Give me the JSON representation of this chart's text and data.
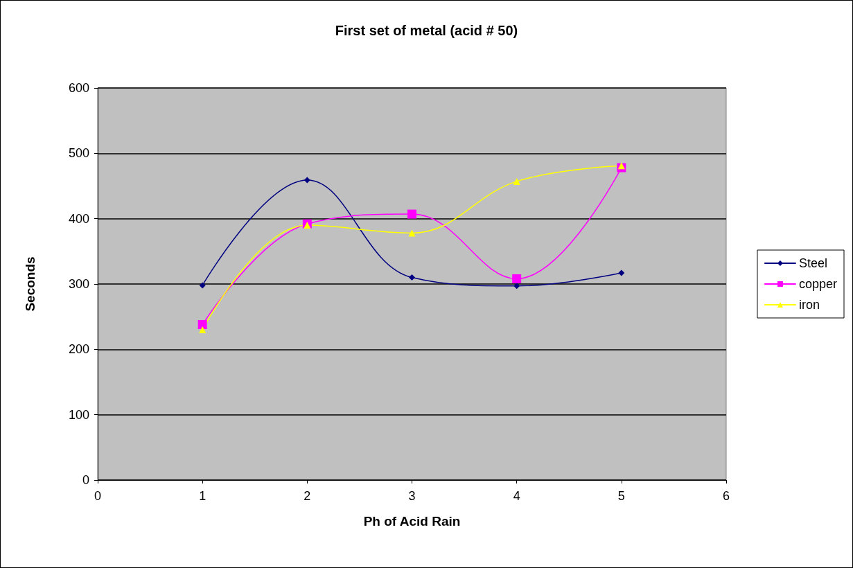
{
  "chart_data": {
    "type": "line",
    "title": "First set of metal (acid # 50)",
    "xlabel": "Ph of Acid Rain",
    "ylabel": "Seconds",
    "x": [
      1,
      2,
      3,
      4,
      5
    ],
    "xlim": [
      0,
      6
    ],
    "xticks": [
      0,
      1,
      2,
      3,
      4,
      5,
      6
    ],
    "ylim": [
      0,
      600
    ],
    "yticks": [
      0,
      100,
      200,
      300,
      400,
      500,
      600
    ],
    "grid": "y",
    "legend": "right",
    "line_style": "solid",
    "series": [
      {
        "name": "Steel",
        "color": "#000080",
        "marker": "diamond",
        "values": [
          298,
          459,
          310,
          297,
          317
        ]
      },
      {
        "name": "copper",
        "color": "#ff00ff",
        "marker": "square",
        "values": [
          238,
          392,
          407,
          308,
          478
        ]
      },
      {
        "name": "iron",
        "color": "#ffff00",
        "marker": "triangle",
        "values": [
          230,
          390,
          378,
          457,
          481
        ]
      }
    ]
  }
}
